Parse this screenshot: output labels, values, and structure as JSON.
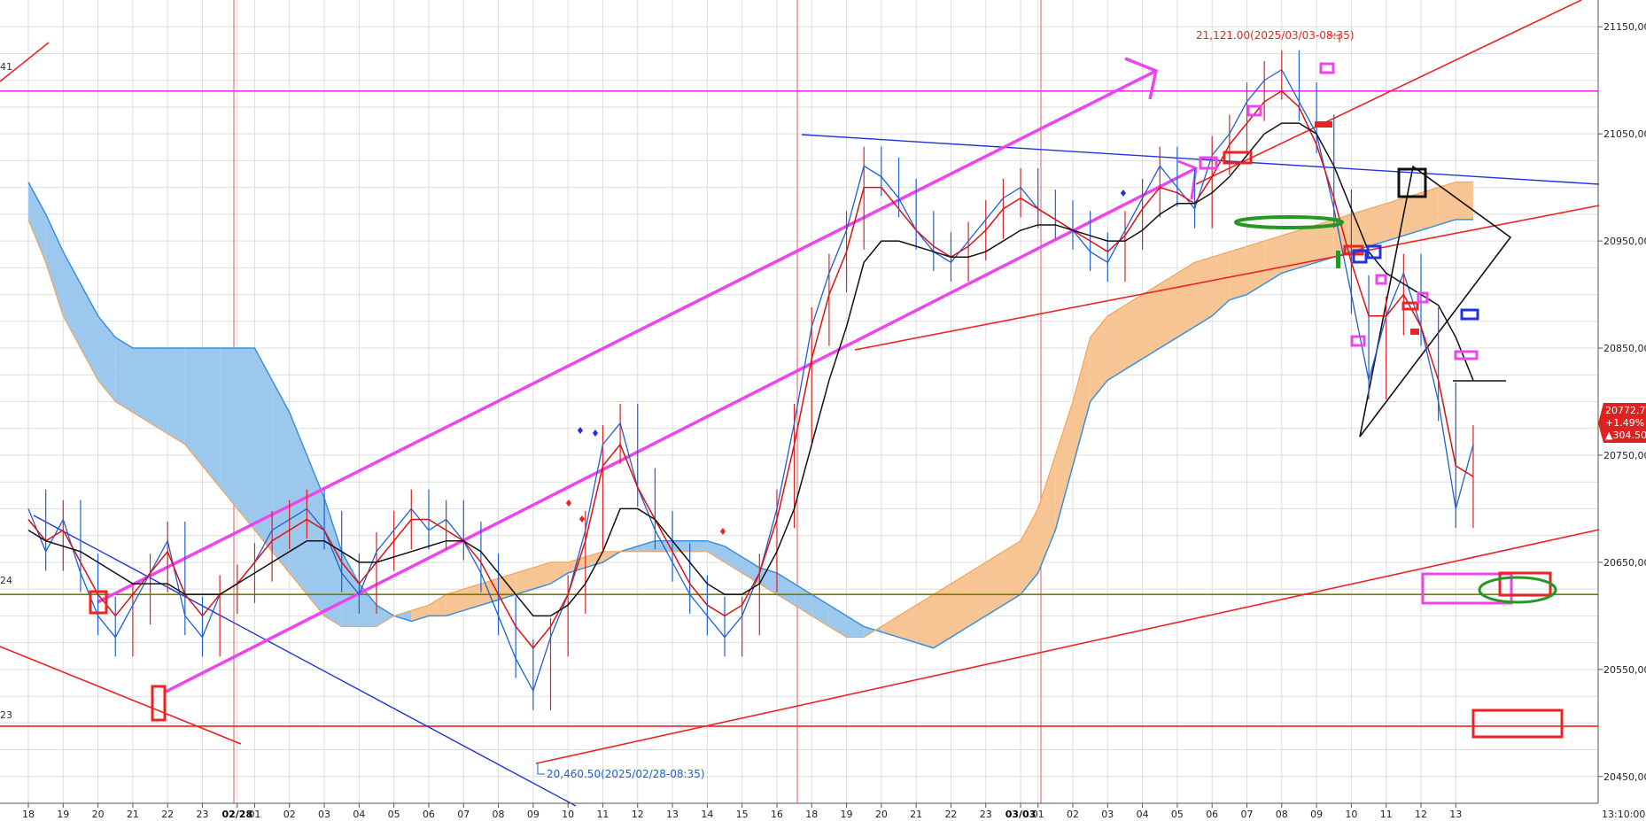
{
  "chart_data": {
    "type": "line",
    "ylim": [
      20425,
      21175
    ],
    "y_ticks": [
      "21150,00",
      "21050,00",
      "20950,00",
      "20850,00",
      "20750,00",
      "20650,00",
      "20550,00",
      "20450,00"
    ],
    "y_tick_values": [
      21150,
      21050,
      20950,
      20850,
      20750,
      20650,
      20550,
      20450
    ],
    "x_ticks": [
      "18",
      "19",
      "20",
      "21",
      "22",
      "23",
      "02/28",
      "01",
      "02",
      "03",
      "04",
      "05",
      "06",
      "07",
      "08",
      "09",
      "10",
      "11",
      "12",
      "13",
      "14",
      "15",
      "16",
      "18",
      "19",
      "20",
      "21",
      "22",
      "23",
      "03/03",
      "01",
      "02",
      "03",
      "04",
      "05",
      "06",
      "07",
      "08",
      "09",
      "10",
      "11",
      "12",
      "13"
    ],
    "x_bold_ticks": [
      "02/28",
      "03/03"
    ],
    "x_tick_positions": [
      0,
      2,
      4,
      6,
      8,
      10,
      12,
      13,
      15,
      17,
      19,
      21,
      23,
      25,
      27,
      29,
      31,
      33,
      35,
      37,
      39,
      41,
      43,
      45,
      47,
      49,
      51,
      53,
      55,
      57,
      58,
      60,
      62,
      64,
      66,
      68,
      70,
      72,
      74,
      76,
      78,
      80,
      82
    ],
    "x_end_label": "13:10:00",
    "bar_count": 84,
    "left_edge_labels": [
      "41",
      "24",
      "23"
    ],
    "annotations": {
      "high": "21,121.00(2025/03/03-08:35)",
      "low": "20,460.50(2025/02/28-08:35)"
    },
    "last_price": {
      "value": "20772.75",
      "change_pct": "+1.49%",
      "change": "▲304.50"
    },
    "horizontal_lines": [
      {
        "y": 21090,
        "color": "#ee33ee"
      },
      {
        "y": 20620,
        "color": "#7a7a00"
      },
      {
        "y": 20497,
        "color": "#ee2222"
      }
    ],
    "cloud": {
      "span_a": [
        21005,
        20975,
        20940,
        20910,
        20880,
        20860,
        20850,
        20850,
        20850,
        20850,
        20850,
        20850,
        20850,
        20850,
        20820,
        20790,
        20750,
        20710,
        20660,
        20630,
        20610,
        20600,
        20595,
        20600,
        20600,
        20605,
        20610,
        20615,
        20620,
        20625,
        20630,
        20640,
        20645,
        20650,
        20660,
        20665,
        20670,
        20670,
        20670,
        20670,
        20665,
        20655,
        20645,
        20640,
        20630,
        20620,
        20610,
        20600,
        20590,
        20585,
        20580,
        20575,
        20570,
        20580,
        20590,
        20600,
        20610,
        20620,
        20640,
        20680,
        20740,
        20800,
        20820,
        20830,
        20840,
        20850,
        20860,
        20870,
        20880,
        20895,
        20900,
        20910,
        20920,
        20925,
        20930,
        20935,
        20940,
        20945,
        20950,
        20955,
        20960,
        20965,
        20970,
        20970
      ],
      "span_b": [
        20970,
        20930,
        20880,
        20850,
        20820,
        20800,
        20790,
        20780,
        20770,
        20760,
        20740,
        20720,
        20700,
        20680,
        20660,
        20640,
        20620,
        20600,
        20590,
        20590,
        20590,
        20600,
        20605,
        20610,
        20620,
        20625,
        20630,
        20635,
        20640,
        20645,
        20650,
        20650,
        20655,
        20660,
        20660,
        20660,
        20660,
        20660,
        20660,
        20660,
        20650,
        20640,
        20630,
        20620,
        20610,
        20600,
        20590,
        20580,
        20580,
        20590,
        20600,
        20610,
        20620,
        20630,
        20640,
        20650,
        20660,
        20670,
        20700,
        20750,
        20800,
        20860,
        20880,
        20890,
        20900,
        20910,
        20920,
        20930,
        20935,
        20940,
        20945,
        20950,
        20955,
        20960,
        20965,
        20970,
        20975,
        20980,
        20985,
        20990,
        20995,
        21000,
        21005,
        21005
      ]
    },
    "series": [
      {
        "color": "#1f5fd6",
        "values": [
          20700,
          20660,
          20690,
          20640,
          20600,
          20580,
          20610,
          20640,
          20670,
          20600,
          20580,
          20620,
          20630,
          20650,
          20680,
          20690,
          20700,
          20680,
          20640,
          20620,
          20660,
          20680,
          20700,
          20680,
          20690,
          20670,
          20640,
          20600,
          20560,
          20530,
          20580,
          20620,
          20680,
          20760,
          20780,
          20720,
          20680,
          20650,
          20620,
          20600,
          20580,
          20600,
          20640,
          20700,
          20780,
          20870,
          20920,
          20960,
          21020,
          21010,
          20990,
          20960,
          20940,
          20930,
          20950,
          20970,
          20990,
          21000,
          20980,
          20970,
          20960,
          20940,
          20930,
          20960,
          20990,
          21020,
          21000,
          20980,
          21030,
          21050,
          21080,
          21100,
          21110,
          21080,
          21050,
          20980,
          20900,
          20820,
          20880,
          20920,
          20870,
          20800,
          20700,
          20760
        ]
      },
      {
        "color": "#dd1111",
        "values": [
          20690,
          20670,
          20680,
          20650,
          20620,
          20600,
          20620,
          20640,
          20660,
          20620,
          20600,
          20620,
          20630,
          20650,
          20670,
          20680,
          20690,
          20680,
          20650,
          20630,
          20650,
          20670,
          20690,
          20690,
          20680,
          20670,
          20650,
          20620,
          20590,
          20570,
          20590,
          20620,
          20670,
          20740,
          20760,
          20720,
          20690,
          20660,
          20630,
          20610,
          20600,
          20610,
          20640,
          20690,
          20760,
          20840,
          20900,
          20940,
          21000,
          21000,
          20980,
          20960,
          20945,
          20935,
          20945,
          20960,
          20980,
          20990,
          20980,
          20970,
          20960,
          20950,
          20940,
          20955,
          20980,
          21000,
          20995,
          20985,
          21010,
          21040,
          21060,
          21080,
          21090,
          21075,
          21040,
          20990,
          20930,
          20880,
          20880,
          20900,
          20870,
          20820,
          20740,
          20730
        ]
      },
      {
        "color": "#111111",
        "values": [
          20680,
          20670,
          20665,
          20660,
          20650,
          20640,
          20630,
          20630,
          20630,
          20620,
          20620,
          20620,
          20630,
          20640,
          20650,
          20660,
          20670,
          20670,
          20660,
          20650,
          20650,
          20655,
          20660,
          20665,
          20670,
          20670,
          20660,
          20640,
          20620,
          20600,
          20600,
          20610,
          20630,
          20660,
          20700,
          20700,
          20690,
          20670,
          20650,
          20630,
          20620,
          20620,
          20630,
          20660,
          20700,
          20760,
          20820,
          20870,
          20930,
          20950,
          20950,
          20945,
          20940,
          20935,
          20935,
          20940,
          20950,
          20960,
          20965,
          20965,
          20960,
          20955,
          20950,
          20950,
          20960,
          20975,
          20985,
          20985,
          20995,
          21010,
          21030,
          21050,
          21060,
          21060,
          21050,
          21020,
          20980,
          20940,
          20920,
          20910,
          20900,
          20890,
          20860,
          20820
        ]
      }
    ]
  }
}
